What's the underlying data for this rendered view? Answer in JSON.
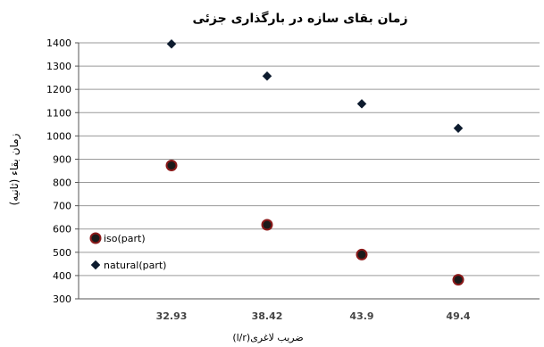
{
  "chart_data": {
    "type": "scatter",
    "title": "زمان بقای سازه در بارگذاری جزئی",
    "xlabel": "ضریب لاغری(l/r)",
    "ylabel": "زمان بقاء (ثانیه)",
    "categories": [
      "32.93",
      "38.42",
      "43.9",
      "49.4"
    ],
    "ylim": [
      300,
      1400
    ],
    "yticks": [
      300,
      400,
      500,
      600,
      700,
      800,
      900,
      1000,
      1100,
      1200,
      1300,
      1400
    ],
    "grid": true,
    "legend_position": "left",
    "series": [
      {
        "name": "iso(part)",
        "marker": "circle",
        "fill": "#1a1a1a",
        "stroke": "#8b1a1a",
        "values": [
          873,
          618,
          490,
          382
        ]
      },
      {
        "name": "natural(part)",
        "marker": "diamond",
        "fill": "#0d1b2e",
        "stroke": "#0d1b2e",
        "values": [
          1395,
          1257,
          1138,
          1033
        ]
      }
    ]
  }
}
